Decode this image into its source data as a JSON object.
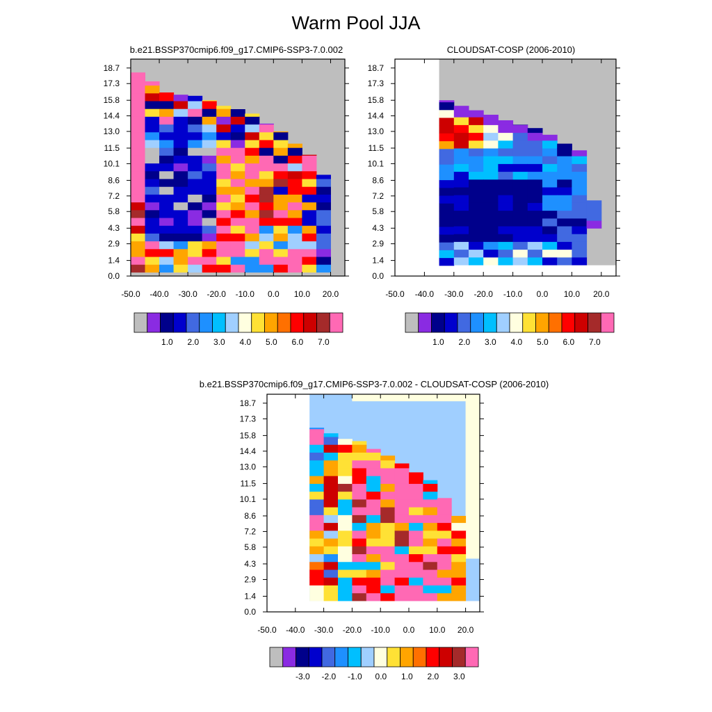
{
  "title": "Warm Pool JJA",
  "colors": {
    "gray": "#bebebe",
    "palette": [
      "#bebebe",
      "#8a2be2",
      "#00008b",
      "#0000cd",
      "#4169e1",
      "#1e90ff",
      "#00bfff",
      "#a0cfff",
      "#ffffe0",
      "#ffe135",
      "#ffa500",
      "#ff7000",
      "#ff0000",
      "#cd0000",
      "#a52a2a",
      "#ff69b4"
    ]
  },
  "chart_data": [
    {
      "type": "heatmap",
      "title": "b.e21.BSSP370cmip6.f09_g17.CMIP6-SSP3-7.0.002",
      "xticks": [
        "-50.0",
        "-40.0",
        "-30.0",
        "-20.0",
        "-10.0",
        "0.0",
        "10.0",
        "20.0"
      ],
      "yticks": [
        "0.0",
        "1.4",
        "2.9",
        "4.3",
        "5.8",
        "7.2",
        "8.6",
        "10.1",
        "11.5",
        "13.0",
        "14.4",
        "15.8",
        "17.3",
        "18.7"
      ],
      "xlim": [
        -50,
        25
      ],
      "ylim": [
        0,
        19.5
      ],
      "colorbar_labels": [
        "1.0",
        "2.0",
        "3.0",
        "4.0",
        "5.0",
        "6.0",
        "7.0"
      ]
    },
    {
      "type": "heatmap",
      "title": "CLOUDSAT-COSP (2006-2010)",
      "xticks": [
        "-50.0",
        "-40.0",
        "-30.0",
        "-20.0",
        "-10.0",
        "0.0",
        "10.0",
        "20.0"
      ],
      "yticks": [
        "0.0",
        "1.4",
        "2.9",
        "4.3",
        "5.8",
        "7.2",
        "8.6",
        "10.1",
        "11.5",
        "13.0",
        "14.4",
        "15.8",
        "17.3",
        "18.7"
      ],
      "xlim": [
        -50,
        25
      ],
      "ylim": [
        0,
        19.5
      ],
      "colorbar_labels": [
        "1.0",
        "2.0",
        "3.0",
        "4.0",
        "5.0",
        "6.0",
        "7.0"
      ]
    },
    {
      "type": "heatmap",
      "title": "b.e21.BSSP370cmip6.f09_g17.CMIP6-SSP3-7.0.002 - CLOUDSAT-COSP (2006-2010)",
      "xticks": [
        "-50.0",
        "-40.0",
        "-30.0",
        "-20.0",
        "-10.0",
        "0.0",
        "10.0",
        "20.0"
      ],
      "yticks": [
        "0.0",
        "1.4",
        "2.9",
        "4.3",
        "5.8",
        "7.2",
        "8.6",
        "10.1",
        "11.5",
        "13.0",
        "14.4",
        "15.8",
        "17.3",
        "18.7"
      ],
      "xlim": [
        -50,
        25
      ],
      "ylim": [
        0,
        19.5
      ],
      "colorbar_labels": [
        "-3.0",
        "-2.0",
        "-1.0",
        "0.0",
        "1.0",
        "2.0",
        "3.0"
      ]
    }
  ]
}
